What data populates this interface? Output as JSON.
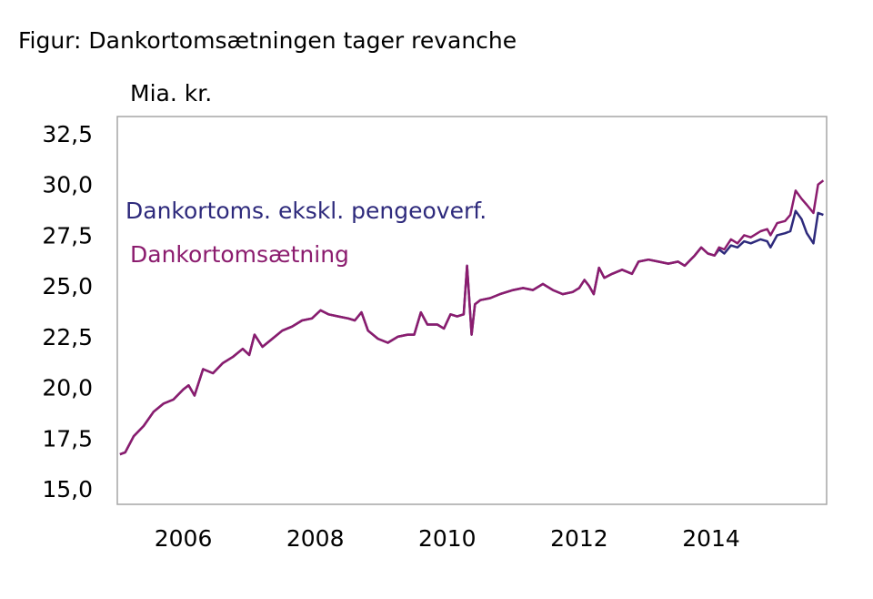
{
  "figure_title": "Figur: Dankortomsætningen tager revanche",
  "colors": {
    "series_excl": "#2e2a7c",
    "series_total": "#8b1c6e",
    "frame": "#a6a6a6"
  },
  "chart_data": {
    "type": "line",
    "title": "Figur: Dankortomsætningen tager revanche",
    "ylabel": "Mia. kr.",
    "xlabel": "",
    "xlim": [
      2005.0,
      2015.75
    ],
    "ylim": [
      15.0,
      32.5
    ],
    "grid": false,
    "legend_position": "left-center, inside plot",
    "y_ticks": [
      "32,5",
      "30,0",
      "27,5",
      "25,0",
      "22,5",
      "20,0",
      "17,5",
      "15,0"
    ],
    "y_tick_values": [
      32.5,
      30.0,
      27.5,
      25.0,
      22.5,
      20.0,
      17.5,
      15.0
    ],
    "x_ticks": [
      "2006",
      "2008",
      "2010",
      "2012",
      "2014"
    ],
    "x_tick_values": [
      2006,
      2008,
      2010,
      2012,
      2014
    ],
    "series": [
      {
        "name": "Dankortomsætning",
        "color": "#8b1c6e",
        "points": [
          [
            2005.04,
            16.7
          ],
          [
            2005.12,
            16.8
          ],
          [
            2005.25,
            17.6
          ],
          [
            2005.4,
            18.1
          ],
          [
            2005.55,
            18.8
          ],
          [
            2005.7,
            19.2
          ],
          [
            2005.85,
            19.4
          ],
          [
            2006.0,
            19.9
          ],
          [
            2006.08,
            20.1
          ],
          [
            2006.17,
            19.6
          ],
          [
            2006.3,
            20.9
          ],
          [
            2006.45,
            20.7
          ],
          [
            2006.6,
            21.2
          ],
          [
            2006.75,
            21.5
          ],
          [
            2006.9,
            21.9
          ],
          [
            2007.0,
            21.6
          ],
          [
            2007.08,
            22.6
          ],
          [
            2007.2,
            22.0
          ],
          [
            2007.35,
            22.4
          ],
          [
            2007.5,
            22.8
          ],
          [
            2007.65,
            23.0
          ],
          [
            2007.8,
            23.3
          ],
          [
            2007.95,
            23.4
          ],
          [
            2008.08,
            23.8
          ],
          [
            2008.2,
            23.6
          ],
          [
            2008.35,
            23.5
          ],
          [
            2008.5,
            23.4
          ],
          [
            2008.6,
            23.3
          ],
          [
            2008.7,
            23.7
          ],
          [
            2008.8,
            22.8
          ],
          [
            2008.95,
            22.4
          ],
          [
            2009.1,
            22.2
          ],
          [
            2009.25,
            22.5
          ],
          [
            2009.4,
            22.6
          ],
          [
            2009.5,
            22.6
          ],
          [
            2009.6,
            23.7
          ],
          [
            2009.7,
            23.1
          ],
          [
            2009.85,
            23.1
          ],
          [
            2009.95,
            22.9
          ],
          [
            2010.05,
            23.6
          ],
          [
            2010.15,
            23.5
          ],
          [
            2010.25,
            23.6
          ],
          [
            2010.3,
            26.0
          ],
          [
            2010.37,
            22.6
          ],
          [
            2010.42,
            24.1
          ],
          [
            2010.5,
            24.3
          ],
          [
            2010.65,
            24.4
          ],
          [
            2010.8,
            24.6
          ],
          [
            2011.0,
            24.8
          ],
          [
            2011.15,
            24.9
          ],
          [
            2011.3,
            24.8
          ],
          [
            2011.45,
            25.1
          ],
          [
            2011.6,
            24.8
          ],
          [
            2011.75,
            24.6
          ],
          [
            2011.9,
            24.7
          ],
          [
            2012.0,
            24.9
          ],
          [
            2012.08,
            25.3
          ],
          [
            2012.15,
            25.0
          ],
          [
            2012.22,
            24.6
          ],
          [
            2012.3,
            25.9
          ],
          [
            2012.38,
            25.4
          ],
          [
            2012.5,
            25.6
          ],
          [
            2012.65,
            25.8
          ],
          [
            2012.8,
            25.6
          ],
          [
            2012.9,
            26.2
          ],
          [
            2013.05,
            26.3
          ],
          [
            2013.2,
            26.2
          ],
          [
            2013.35,
            26.1
          ],
          [
            2013.5,
            26.2
          ],
          [
            2013.6,
            26.0
          ],
          [
            2013.75,
            26.5
          ],
          [
            2013.85,
            26.9
          ],
          [
            2013.95,
            26.6
          ],
          [
            2014.05,
            26.5
          ],
          [
            2014.12,
            26.9
          ],
          [
            2014.2,
            26.8
          ],
          [
            2014.3,
            27.3
          ],
          [
            2014.4,
            27.1
          ],
          [
            2014.5,
            27.5
          ],
          [
            2014.6,
            27.4
          ],
          [
            2014.75,
            27.7
          ],
          [
            2014.85,
            27.8
          ],
          [
            2014.9,
            27.5
          ],
          [
            2015.0,
            28.1
          ],
          [
            2015.12,
            28.2
          ],
          [
            2015.2,
            28.5
          ],
          [
            2015.28,
            29.7
          ],
          [
            2015.37,
            29.3
          ],
          [
            2015.45,
            29.0
          ],
          [
            2015.55,
            28.6
          ],
          [
            2015.62,
            30.0
          ],
          [
            2015.7,
            30.2
          ]
        ]
      },
      {
        "name": "Dankortoms. ekskl. pengeoverf.",
        "color": "#2e2a7c",
        "points": [
          [
            2005.04,
            16.7
          ],
          [
            2005.12,
            16.8
          ],
          [
            2005.25,
            17.6
          ],
          [
            2005.4,
            18.1
          ],
          [
            2005.55,
            18.8
          ],
          [
            2005.7,
            19.2
          ],
          [
            2005.85,
            19.4
          ],
          [
            2006.0,
            19.9
          ],
          [
            2006.08,
            20.1
          ],
          [
            2006.17,
            19.6
          ],
          [
            2006.3,
            20.9
          ],
          [
            2006.45,
            20.7
          ],
          [
            2006.6,
            21.2
          ],
          [
            2006.75,
            21.5
          ],
          [
            2006.9,
            21.9
          ],
          [
            2007.0,
            21.6
          ],
          [
            2007.08,
            22.6
          ],
          [
            2007.2,
            22.0
          ],
          [
            2007.35,
            22.4
          ],
          [
            2007.5,
            22.8
          ],
          [
            2007.65,
            23.0
          ],
          [
            2007.8,
            23.3
          ],
          [
            2007.95,
            23.4
          ],
          [
            2008.08,
            23.8
          ],
          [
            2008.2,
            23.6
          ],
          [
            2008.35,
            23.5
          ],
          [
            2008.5,
            23.4
          ],
          [
            2008.6,
            23.3
          ],
          [
            2008.7,
            23.7
          ],
          [
            2008.8,
            22.8
          ],
          [
            2008.95,
            22.4
          ],
          [
            2009.1,
            22.2
          ],
          [
            2009.25,
            22.5
          ],
          [
            2009.4,
            22.6
          ],
          [
            2009.5,
            22.6
          ],
          [
            2009.6,
            23.7
          ],
          [
            2009.7,
            23.1
          ],
          [
            2009.85,
            23.1
          ],
          [
            2009.95,
            22.9
          ],
          [
            2010.05,
            23.6
          ],
          [
            2010.15,
            23.5
          ],
          [
            2010.25,
            23.6
          ],
          [
            2010.3,
            26.0
          ],
          [
            2010.37,
            22.6
          ],
          [
            2010.42,
            24.1
          ],
          [
            2010.5,
            24.3
          ],
          [
            2010.65,
            24.4
          ],
          [
            2010.8,
            24.6
          ],
          [
            2011.0,
            24.8
          ],
          [
            2011.15,
            24.9
          ],
          [
            2011.3,
            24.8
          ],
          [
            2011.45,
            25.1
          ],
          [
            2011.6,
            24.8
          ],
          [
            2011.75,
            24.6
          ],
          [
            2011.9,
            24.7
          ],
          [
            2012.0,
            24.9
          ],
          [
            2012.08,
            25.3
          ],
          [
            2012.15,
            25.0
          ],
          [
            2012.22,
            24.6
          ],
          [
            2012.3,
            25.9
          ],
          [
            2012.38,
            25.4
          ],
          [
            2012.5,
            25.6
          ],
          [
            2012.65,
            25.8
          ],
          [
            2012.8,
            25.6
          ],
          [
            2012.9,
            26.2
          ],
          [
            2013.05,
            26.3
          ],
          [
            2013.2,
            26.2
          ],
          [
            2013.35,
            26.1
          ],
          [
            2013.5,
            26.2
          ],
          [
            2013.6,
            26.0
          ],
          [
            2013.75,
            26.5
          ],
          [
            2013.85,
            26.9
          ],
          [
            2013.95,
            26.6
          ],
          [
            2014.05,
            26.5
          ],
          [
            2014.12,
            26.8
          ],
          [
            2014.2,
            26.6
          ],
          [
            2014.3,
            27.0
          ],
          [
            2014.4,
            26.9
          ],
          [
            2014.5,
            27.2
          ],
          [
            2014.6,
            27.1
          ],
          [
            2014.75,
            27.3
          ],
          [
            2014.85,
            27.2
          ],
          [
            2014.9,
            26.9
          ],
          [
            2015.0,
            27.5
          ],
          [
            2015.12,
            27.6
          ],
          [
            2015.2,
            27.7
          ],
          [
            2015.28,
            28.7
          ],
          [
            2015.37,
            28.3
          ],
          [
            2015.45,
            27.6
          ],
          [
            2015.55,
            27.1
          ],
          [
            2015.62,
            28.6
          ],
          [
            2015.7,
            28.5
          ]
        ]
      }
    ]
  }
}
